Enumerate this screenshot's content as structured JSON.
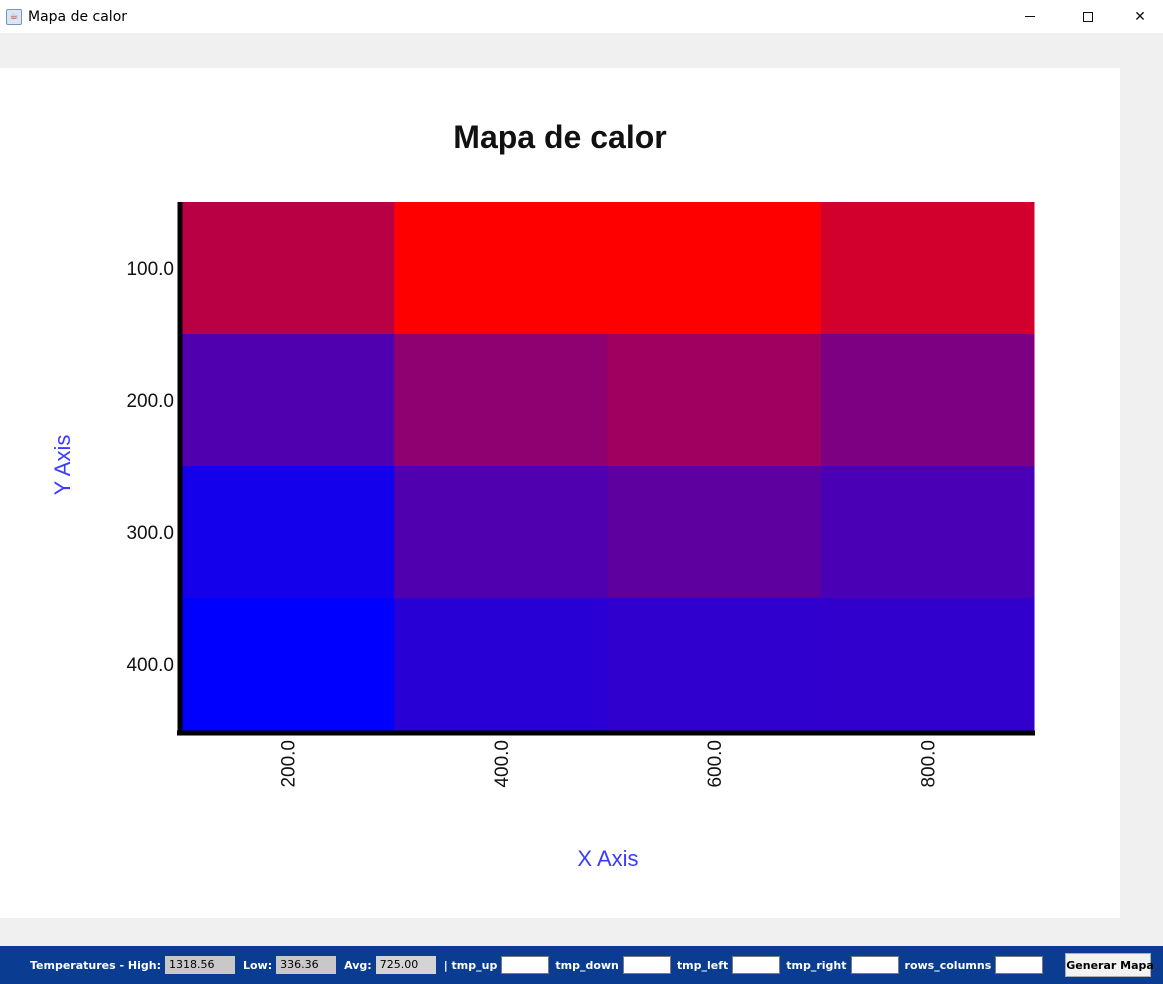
{
  "window": {
    "title": "Mapa de calor",
    "minimize_label": "—",
    "close_label": "✕"
  },
  "chart_data": {
    "type": "heatmap",
    "title": "Mapa de calor",
    "xlabel": "X Axis",
    "ylabel": "Y Axis",
    "x_ticks": [
      "200.0",
      "400.0",
      "600.0",
      "800.0"
    ],
    "y_ticks": [
      "100.0",
      "200.0",
      "300.0",
      "400.0"
    ],
    "x": [
      200,
      400,
      600,
      800
    ],
    "y": [
      100,
      200,
      300,
      400
    ],
    "colors": [
      [
        "#ba0044",
        "#ff0000",
        "#ff0000",
        "#d2002c"
      ],
      [
        "#5000ae",
        "#8f0070",
        "#a00060",
        "#7e0082"
      ],
      [
        "#1400eb",
        "#5000ae",
        "#5e00a0",
        "#4a00b4"
      ],
      [
        "#0000ff",
        "#2800d6",
        "#3000cf",
        "#3200cd"
      ]
    ],
    "color_low": "#0000ff",
    "color_high": "#ff0000",
    "axis_label_color": "#3b3bff"
  },
  "bottom_bar": {
    "temps_label": "Temperatures - High:",
    "high_value": "1318.56",
    "low_label": "Low:",
    "low_value": "336.36",
    "avg_label": "Avg:",
    "avg_value": "725.00",
    "tmp_up_label": "| tmp_up",
    "tmp_down_label": "tmp_down",
    "tmp_left_label": "tmp_left",
    "tmp_right_label": "tmp_right",
    "rows_columns_label": "rows_columns",
    "button_label": "Generar Mapa"
  }
}
